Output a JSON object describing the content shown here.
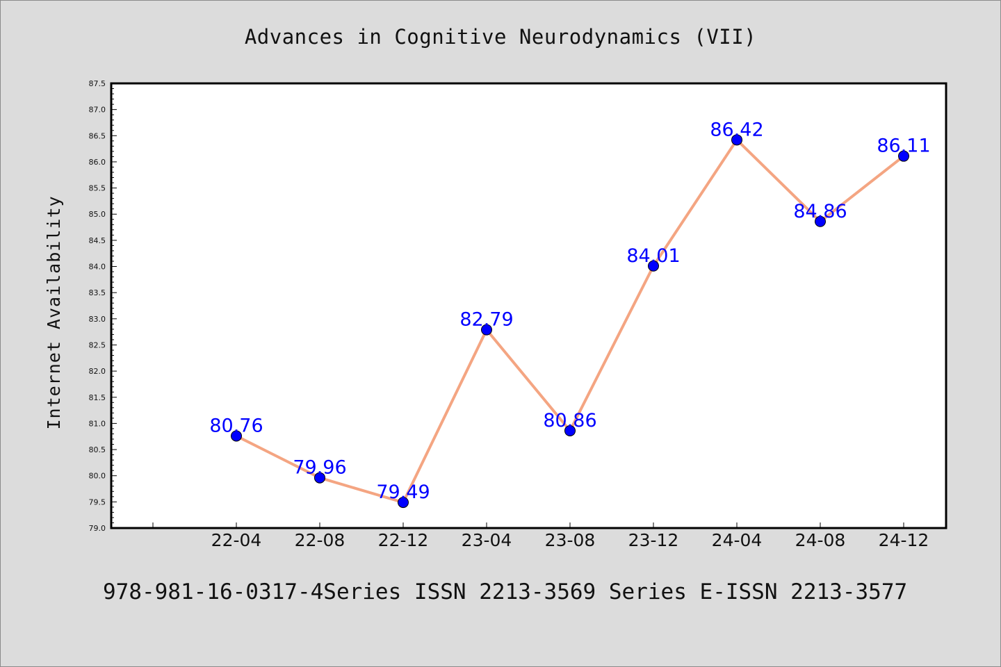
{
  "chart_data": {
    "type": "line",
    "title": "Advances in Cognitive Neurodynamics (VII)",
    "xlabel": "",
    "ylabel": "Internet Availability",
    "categories": [
      "22-04",
      "22-08",
      "22-12",
      "23-04",
      "23-08",
      "23-12",
      "24-04",
      "24-08",
      "24-12"
    ],
    "series": [
      {
        "name": "",
        "values": [
          80.76,
          79.96,
          79.49,
          82.79,
          80.86,
          84.01,
          86.42,
          84.86,
          86.11
        ]
      }
    ],
    "ylim": [
      79.0,
      87.5
    ],
    "yticks": [
      "79.0",
      "79.5",
      "80.0",
      "80.5",
      "81.0",
      "81.5",
      "82.0",
      "82.5",
      "83.0",
      "83.5",
      "84.0",
      "84.5",
      "85.0",
      "85.5",
      "86.0",
      "86.5",
      "87.0",
      "87.5"
    ],
    "data_labels": [
      "80.76",
      "79.96",
      "79.49",
      "82.79",
      "80.86",
      "84.01",
      "86.42",
      "84.86",
      "86.11"
    ],
    "grid": false,
    "legend": "none",
    "colors": {
      "line": "#f4a582",
      "marker": "#0000ff",
      "label": "#0000ff",
      "background": "#dcdcdc",
      "plot_background": "#ffffff"
    }
  },
  "footer": {
    "text": "978-981-16-0317-4Series ISSN 2213-3569 Series E-ISSN 2213-3577"
  }
}
